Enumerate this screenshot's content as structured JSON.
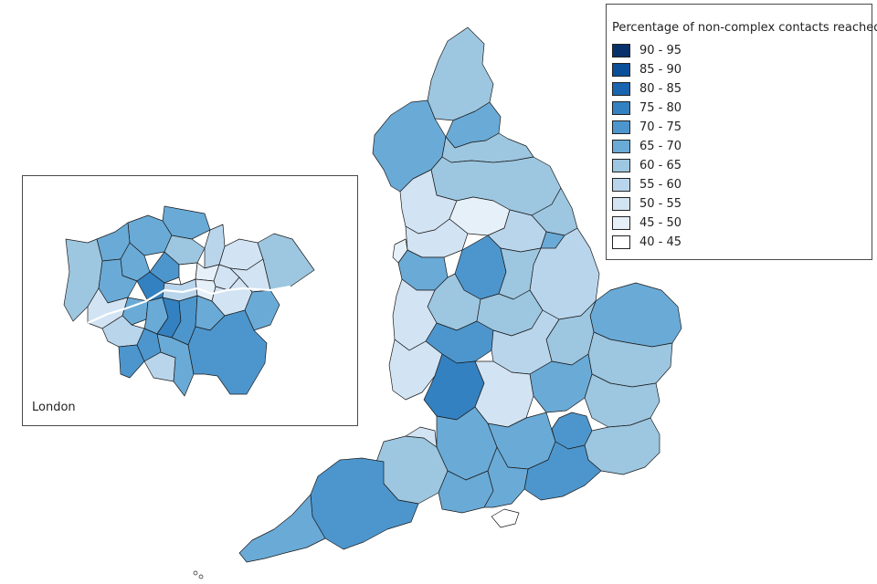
{
  "legend": {
    "title": "Percentage of non-complex contacts reached",
    "bins": [
      {
        "label": "90 - 95",
        "color": "#08306b"
      },
      {
        "label": "85 - 90",
        "color": "#0a4f99"
      },
      {
        "label": "80 - 85",
        "color": "#1965b0"
      },
      {
        "label": "75 - 80",
        "color": "#3381c0"
      },
      {
        "label": "70 - 75",
        "color": "#4d96cd"
      },
      {
        "label": "65 - 70",
        "color": "#6aaad6"
      },
      {
        "label": "60 - 65",
        "color": "#9dc6e0"
      },
      {
        "label": "55 - 60",
        "color": "#b9d5ec"
      },
      {
        "label": "50 - 55",
        "color": "#d2e3f3"
      },
      {
        "label": "45 - 50",
        "color": "#e6f0f9"
      },
      {
        "label": "40 - 45",
        "color": "#ffffff"
      }
    ]
  },
  "inset": {
    "label": "London"
  }
}
